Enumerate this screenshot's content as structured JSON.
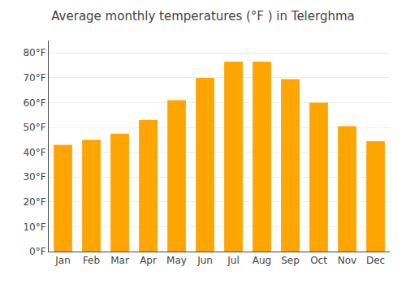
{
  "chart_data": {
    "type": "bar",
    "title": "Average monthly temperatures (°F ) in Telerghma",
    "categories": [
      "Jan",
      "Feb",
      "Mar",
      "Apr",
      "May",
      "Jun",
      "Jul",
      "Aug",
      "Sep",
      "Oct",
      "Nov",
      "Dec"
    ],
    "values": [
      43,
      45,
      47.5,
      53,
      61,
      70,
      76.5,
      76.5,
      69.5,
      60,
      50.5,
      44.5
    ],
    "color": "#FFA500",
    "ylim": [
      0,
      85
    ],
    "yticks": [
      {
        "value": 0,
        "label": "0°F"
      },
      {
        "value": 10,
        "label": "10°F"
      },
      {
        "value": 20,
        "label": "20°F"
      },
      {
        "value": 30,
        "label": "30°F"
      },
      {
        "value": 40,
        "label": "40°F"
      },
      {
        "value": 50,
        "label": "50°F"
      },
      {
        "value": 60,
        "label": "60°F"
      },
      {
        "value": 70,
        "label": "70°F"
      },
      {
        "value": 80,
        "label": "80°F"
      }
    ],
    "grid": true
  }
}
